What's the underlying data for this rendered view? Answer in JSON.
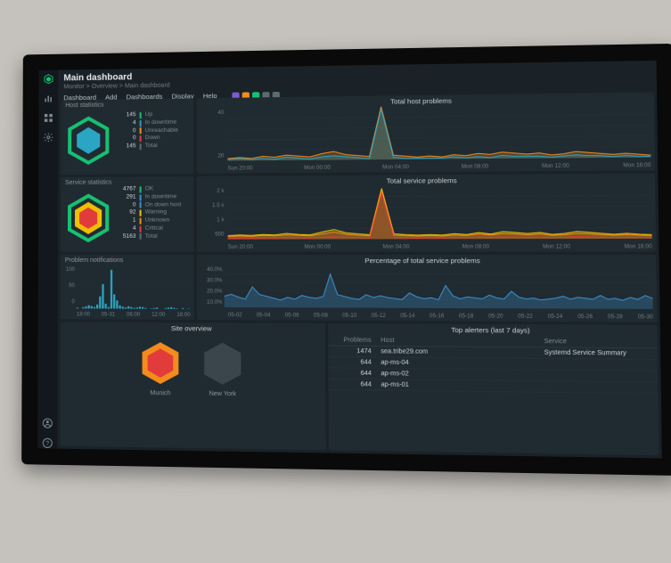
{
  "colors": {
    "bg": "#1a2228",
    "panel": "#202a31",
    "grid": "#2b363d",
    "text": "#c9d1d4",
    "muted": "#6f7d83",
    "green": "#16c172",
    "yellow": "#f0c000",
    "orange": "#f28c1c",
    "red": "#e23b3b",
    "cyan": "#2aa6c4",
    "blue": "#3c8fc8",
    "purple": "#7c5bd1"
  },
  "page": {
    "title": "Main dashboard",
    "breadcrumbs": "Monitor > Overview > Main dashboard"
  },
  "menu": {
    "items": [
      "Dashboard",
      "Add",
      "Dashboards",
      "Display",
      "Help"
    ],
    "badge_colors": [
      "#7c5bd1",
      "#f28c1c",
      "#16c172",
      "#5a6a72",
      "#5a6a72"
    ]
  },
  "host_stats": {
    "title": "Host statistics",
    "rows": [
      {
        "n": "145",
        "label": "Up",
        "c": "#16c172"
      },
      {
        "n": "4",
        "label": "In downtime",
        "c": "#3c8fc8"
      },
      {
        "n": "0",
        "label": "Unreachable",
        "c": "#f28c1c"
      },
      {
        "n": "0",
        "label": "Down",
        "c": "#e23b3b"
      },
      {
        "n": "145",
        "label": "Total",
        "c": "#5a6a72"
      }
    ],
    "hex_colors": {
      "outer": "#16c172",
      "inner": "#2aa6c4"
    }
  },
  "service_stats": {
    "title": "Service statistics",
    "rows": [
      {
        "n": "4767",
        "label": "OK",
        "c": "#16c172"
      },
      {
        "n": "291",
        "label": "In downtime",
        "c": "#3c8fc8"
      },
      {
        "n": "0",
        "label": "On down host",
        "c": "#3c8fc8"
      },
      {
        "n": "92",
        "label": "Warning",
        "c": "#f0c000"
      },
      {
        "n": "1",
        "label": "Unknown",
        "c": "#f28c1c"
      },
      {
        "n": "4",
        "label": "Critical",
        "c": "#e23b3b"
      },
      {
        "n": "5163",
        "label": "Total",
        "c": "#5a6a72"
      }
    ],
    "hex_colors": {
      "outer": "#16c172",
      "mid": "#f0c000",
      "inner": "#e23b3b"
    }
  },
  "host_problems": {
    "title": "Total host problems",
    "y_ticks": [
      "40",
      "20"
    ],
    "x_ticks": [
      "Sun 20:00",
      "Mon 00:00",
      "Mon 04:00",
      "Mon 08:00",
      "Mon 12:00",
      "Mon 16:00"
    ],
    "ylim": [
      0,
      50
    ],
    "series": [
      {
        "color": "#f28c1c",
        "fill": "rgba(242,140,28,.25)",
        "pts": [
          2,
          3,
          2,
          4,
          3,
          5,
          4,
          3,
          6,
          8,
          5,
          4,
          3,
          50,
          4,
          3,
          2,
          3,
          2,
          4,
          3,
          5,
          4,
          6,
          5,
          4,
          5,
          3,
          4,
          6,
          5,
          4,
          3,
          4,
          3,
          2
        ]
      },
      {
        "color": "#2aa6c4",
        "fill": "rgba(42,166,196,.25)",
        "pts": [
          1,
          2,
          1,
          2,
          1,
          3,
          2,
          1,
          3,
          4,
          3,
          2,
          1,
          48,
          2,
          1,
          1,
          1,
          1,
          2,
          1,
          2,
          1,
          3,
          2,
          2,
          2,
          1,
          2,
          3,
          2,
          2,
          1,
          2,
          1,
          1
        ]
      }
    ]
  },
  "service_problems": {
    "title": "Total service problems",
    "y_ticks": [
      "2 k",
      "1.5 k",
      "1 k",
      "500"
    ],
    "x_ticks": [
      "Sun 20:00",
      "Mon 00:00",
      "Mon 04:00",
      "Mon 08:00",
      "Mon 12:00",
      "Mon 16:00"
    ],
    "ylim": [
      0,
      2200
    ],
    "series": [
      {
        "color": "#f0c000",
        "fill": "rgba(240,192,0,.25)",
        "pts": [
          150,
          180,
          160,
          200,
          180,
          240,
          200,
          180,
          300,
          400,
          260,
          220,
          180,
          2100,
          220,
          180,
          160,
          180,
          160,
          220,
          180,
          260,
          200,
          300,
          260,
          220,
          260,
          180,
          220,
          300,
          260,
          220,
          180,
          220,
          180,
          160
        ]
      },
      {
        "color": "#f28c1c",
        "fill": "rgba(242,140,28,.22)",
        "pts": [
          120,
          140,
          120,
          160,
          140,
          180,
          160,
          140,
          220,
          300,
          200,
          160,
          140,
          2000,
          160,
          140,
          120,
          140,
          120,
          160,
          140,
          200,
          160,
          220,
          200,
          160,
          200,
          140,
          160,
          220,
          200,
          160,
          140,
          160,
          140,
          120
        ]
      },
      {
        "color": "#e23b3b",
        "fill": "rgba(226,59,59,.2)",
        "pts": [
          40,
          50,
          40,
          60,
          50,
          70,
          60,
          50,
          80,
          100,
          80,
          60,
          50,
          1900,
          60,
          50,
          40,
          50,
          40,
          60,
          50,
          70,
          60,
          80,
          70,
          60,
          70,
          50,
          60,
          90,
          70,
          60,
          50,
          60,
          50,
          40
        ]
      }
    ]
  },
  "pct_problems": {
    "title": "Percentage of total service problems",
    "y_ticks": [
      "40.0%",
      "30.0%",
      "20.0%",
      "10.0%"
    ],
    "x_ticks": [
      "05-02",
      "05-04",
      "05-06",
      "05-08",
      "05-10",
      "05-12",
      "05-14",
      "05-16",
      "05-18",
      "05-20",
      "05-22",
      "05-24",
      "05-26",
      "05-28",
      "05-30"
    ],
    "ylim": [
      0,
      45
    ],
    "series": [
      {
        "color": "#3c8fc8",
        "fill": "rgba(60,143,200,.3)",
        "pts": [
          12,
          14,
          11,
          9,
          22,
          14,
          12,
          10,
          8,
          11,
          9,
          13,
          11,
          10,
          12,
          36,
          14,
          12,
          10,
          9,
          14,
          11,
          13,
          11,
          10,
          9,
          16,
          12,
          10,
          11,
          9,
          24,
          13,
          10,
          12,
          11,
          10,
          14,
          11,
          10,
          18,
          12,
          10,
          11,
          9,
          10,
          11,
          13,
          10,
          12,
          11,
          10,
          14,
          10,
          11,
          9,
          12,
          10,
          14,
          11
        ]
      }
    ]
  },
  "notifications": {
    "title": "Problem notifications",
    "y_ticks": [
      "100",
      "50",
      "0"
    ],
    "x_ticks": [
      "18:00",
      "05-31",
      "06:00",
      "12:00",
      "18:00"
    ],
    "ylim": [
      0,
      110
    ],
    "bars": [
      2,
      0,
      3,
      5,
      8,
      6,
      4,
      10,
      30,
      60,
      12,
      4,
      95,
      35,
      20,
      8,
      5,
      3,
      6,
      4,
      2,
      3,
      5,
      4,
      2,
      0,
      1,
      2,
      3,
      0,
      0,
      2,
      3,
      4,
      2,
      1,
      0,
      2,
      0,
      1
    ]
  },
  "sites": {
    "title": "Site overview",
    "items": [
      {
        "label": "Munich",
        "colors": [
          "#f28c1c",
          "#e23b3b"
        ]
      },
      {
        "label": "New York",
        "colors": [
          "#3a454c",
          "#3a454c"
        ]
      }
    ]
  },
  "top_alerters": {
    "title": "Top alerters (last 7 days)",
    "columns": [
      "Problems",
      "Host",
      "Service"
    ],
    "rows": [
      {
        "n": "1474",
        "host": "sea.tribe29.com",
        "service": "Systemd Service Summary"
      },
      {
        "n": "644",
        "host": "ap-ms-04",
        "service": ""
      },
      {
        "n": "644",
        "host": "ap-ms-02",
        "service": ""
      },
      {
        "n": "644",
        "host": "ap-ms-01",
        "service": ""
      }
    ]
  }
}
